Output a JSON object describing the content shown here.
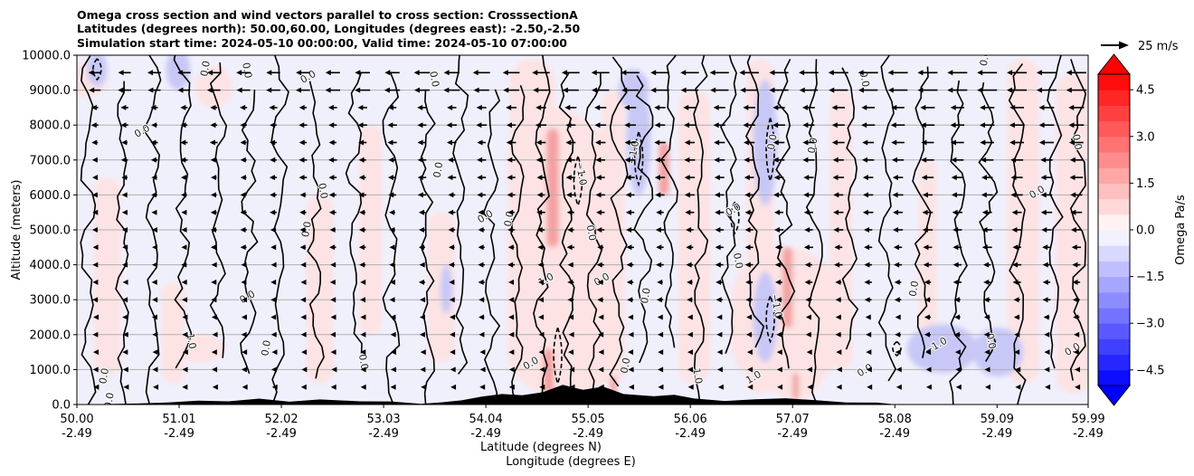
{
  "chart_data": {
    "type": "contour",
    "title_lines": [
      "Omega cross section and wind vectors parallel to cross section: CrosssectionA",
      "Latitudes (degrees north): 50.00,60.00, Longitudes (degrees east): -2.50,-2.50",
      "Simulation start time: 2024-05-10 00:00:00, Valid time: 2024-05-10 07:00:00"
    ],
    "ylabel": "Altitude (meters)",
    "xlabel_lines": [
      "Latitude (degrees N)",
      "Longitude (degrees E)"
    ],
    "ylim": [
      0,
      10000
    ],
    "y_ticks": [
      "0.0",
      "1000.0",
      "2000.0",
      "3000.0",
      "4000.0",
      "5000.0",
      "6000.0",
      "7000.0",
      "8000.0",
      "9000.0",
      "10000.0"
    ],
    "y_tick_values": [
      0,
      1000,
      2000,
      3000,
      4000,
      5000,
      6000,
      7000,
      8000,
      9000,
      10000
    ],
    "xlim": [
      50.0,
      59.99
    ],
    "x_tick_values": [
      50.0,
      51.01,
      52.02,
      53.03,
      54.04,
      55.05,
      56.06,
      57.07,
      58.08,
      59.09,
      59.99
    ],
    "x_ticks_lat": [
      "50.00",
      "51.01",
      "52.02",
      "53.03",
      "54.04",
      "55.05",
      "56.06",
      "57.07",
      "58.08",
      "59.09",
      "59.99"
    ],
    "x_ticks_lon": [
      "-2.49",
      "-2.49",
      "-2.49",
      "-2.49",
      "-2.49",
      "-2.49",
      "-2.49",
      "-2.49",
      "-2.49",
      "-2.49",
      "-2.49"
    ],
    "colorbar": {
      "label": "Omega Pa/s",
      "range": [
        -5.0,
        5.0
      ],
      "ticks": [
        "4.5",
        "3.0",
        "1.5",
        "0.0",
        "−1.5",
        "−3.0",
        "−4.5"
      ],
      "tick_values": [
        4.5,
        3.0,
        1.5,
        0.0,
        -1.5,
        -3.0,
        -4.5
      ],
      "levels": 20,
      "cmap": "bwr",
      "extend": "both"
    },
    "vector_key": {
      "label": "25 m/s"
    },
    "contour_labels": [
      {
        "text": "0.0",
        "lat": 51.3,
        "alt": 9600
      },
      {
        "text": "0.0",
        "lat": 51.65,
        "alt": 9550
      },
      {
        "text": "0.0",
        "lat": 50.66,
        "alt": 7750
      },
      {
        "text": "0.0",
        "lat": 52.3,
        "alt": 5000
      },
      {
        "text": "0.0",
        "lat": 52.4,
        "alt": 6100
      },
      {
        "text": "0.0",
        "lat": 52.3,
        "alt": 9300
      },
      {
        "text": "0.0",
        "lat": 53.6,
        "alt": 6700
      },
      {
        "text": "0.0",
        "lat": 53.5,
        "alt": 9300
      },
      {
        "text": "0.0",
        "lat": 54.05,
        "alt": 5300
      },
      {
        "text": "0.0",
        "lat": 54.3,
        "alt": 5300
      },
      {
        "text": "0.0",
        "lat": 55.05,
        "alt": 4900
      },
      {
        "text": "0.0",
        "lat": 55.2,
        "alt": 3500
      },
      {
        "text": "−1.0",
        "lat": 55.53,
        "alt": 7200
      },
      {
        "text": "−1.0",
        "lat": 54.95,
        "alt": 6600
      },
      {
        "text": "1.0",
        "lat": 54.65,
        "alt": 3500
      },
      {
        "text": "0.0",
        "lat": 55.65,
        "alt": 3100
      },
      {
        "text": "0.0",
        "lat": 56.5,
        "alt": 4100
      },
      {
        "text": "0.0",
        "lat": 56.5,
        "alt": 5500
      },
      {
        "text": "0.0",
        "lat": 56.9,
        "alt": 7500
      },
      {
        "text": "−1.0",
        "lat": 56.88,
        "alt": 2800
      },
      {
        "text": "1.0",
        "lat": 56.7,
        "alt": 700
      },
      {
        "text": "0.0",
        "lat": 57.3,
        "alt": 7400
      },
      {
        "text": "0.0",
        "lat": 57.75,
        "alt": 9300
      },
      {
        "text": "−1.0",
        "lat": 58.5,
        "alt": 1600
      },
      {
        "text": "0.0",
        "lat": 58.3,
        "alt": 3300
      },
      {
        "text": "0.0",
        "lat": 59.0,
        "alt": 1800
      },
      {
        "text": "0.0",
        "lat": 59.5,
        "alt": 6000
      },
      {
        "text": "0.0",
        "lat": 59.0,
        "alt": 9900
      },
      {
        "text": "0.0",
        "lat": 59.85,
        "alt": 7500
      },
      {
        "text": "0.0",
        "lat": 59.85,
        "alt": 1500
      },
      {
        "text": "0.0",
        "lat": 50.3,
        "alt": 800
      },
      {
        "text": "1.0",
        "lat": 51.1,
        "alt": 1800
      },
      {
        "text": "0.0",
        "lat": 51.7,
        "alt": 3000
      },
      {
        "text": "0.0",
        "lat": 51.9,
        "alt": 1600
      },
      {
        "text": "0.0",
        "lat": 52.8,
        "alt": 1200
      },
      {
        "text": "0.0",
        "lat": 54.5,
        "alt": 1100
      },
      {
        "text": "0.0",
        "lat": 55.45,
        "alt": 1100
      },
      {
        "text": "1.0",
        "lat": 56.1,
        "alt": 800
      },
      {
        "text": "0.0",
        "lat": 57.8,
        "alt": 900
      },
      {
        "text": "0.0",
        "lat": 50.35,
        "alt": 100
      }
    ]
  }
}
